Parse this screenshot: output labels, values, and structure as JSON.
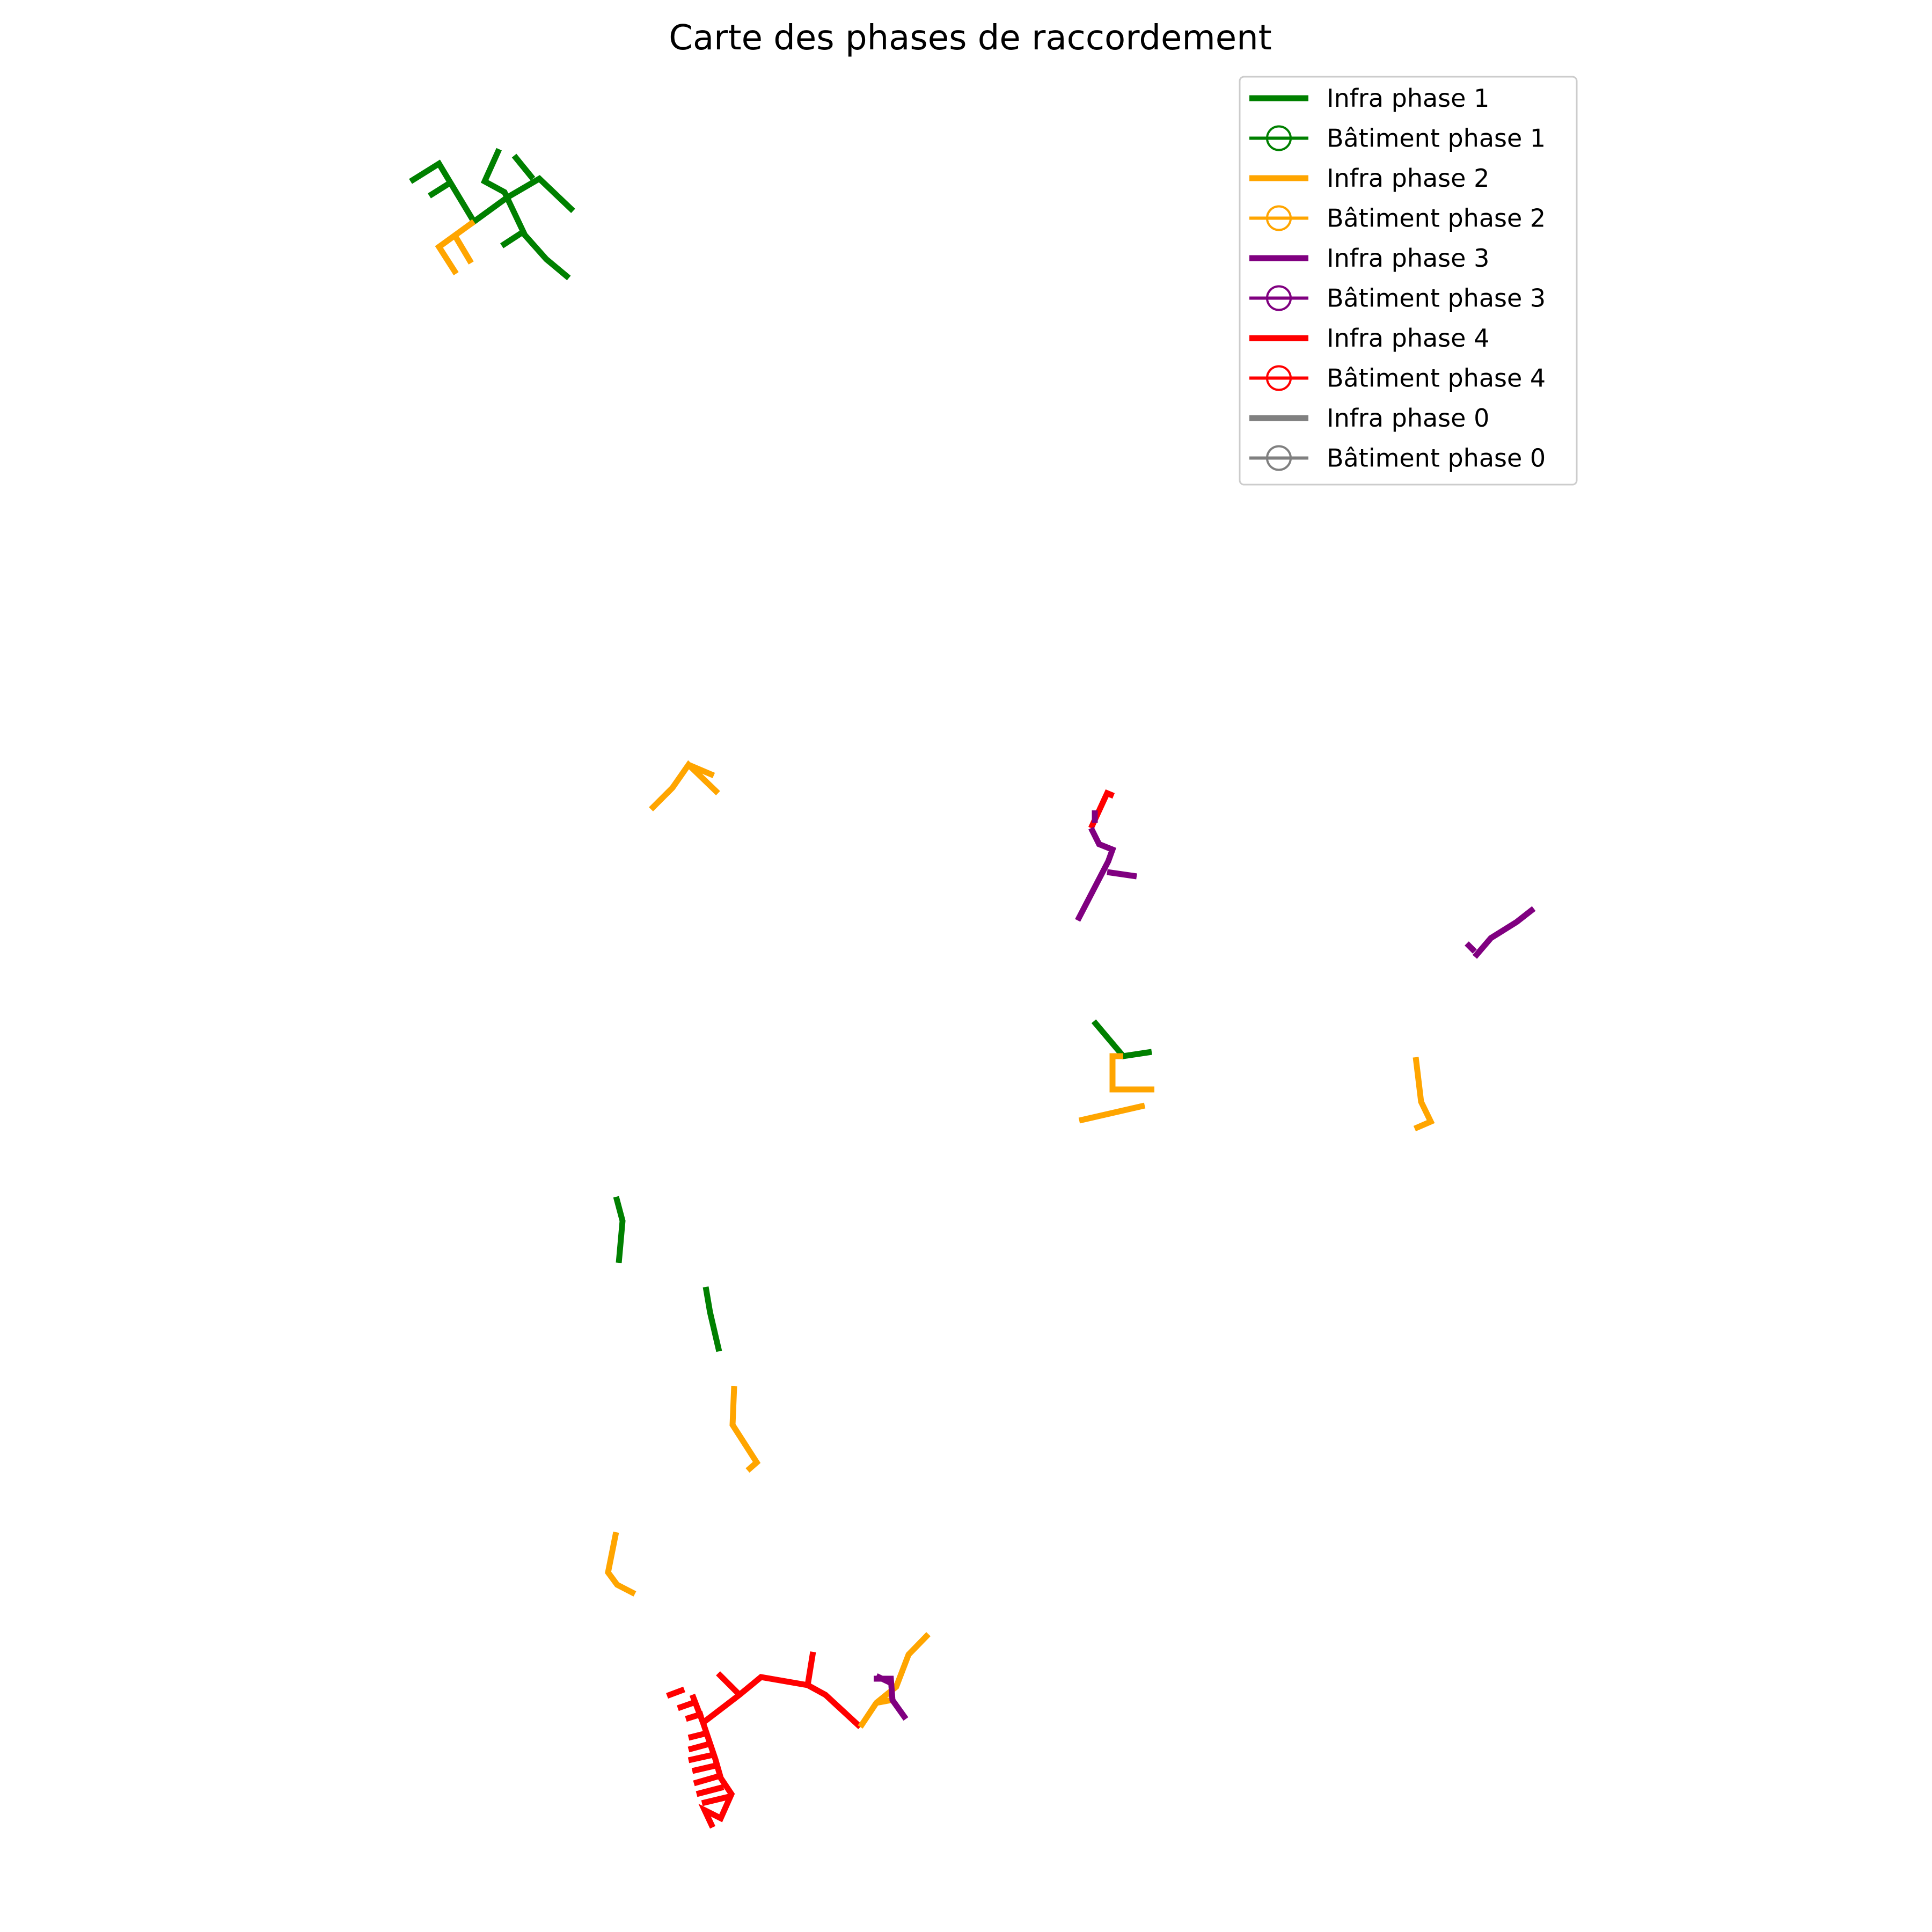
{
  "title": "Carte des phases de raccordement",
  "colors": {
    "phase_1": "#008000",
    "phase_2": "#ffa500",
    "phase_3": "#800080",
    "phase_4": "#ff0000",
    "phase_0": "#808080"
  },
  "legend": {
    "placement": "top-right",
    "entries": [
      {
        "label": "Infra phase 1",
        "phase": "phase_1",
        "marker": "line"
      },
      {
        "label": "Bâtiment phase 1",
        "phase": "phase_1",
        "marker": "circle"
      },
      {
        "label": "Infra phase 2",
        "phase": "phase_2",
        "marker": "line"
      },
      {
        "label": "Bâtiment phase 2",
        "phase": "phase_2",
        "marker": "circle"
      },
      {
        "label": "Infra phase 3",
        "phase": "phase_3",
        "marker": "line"
      },
      {
        "label": "Bâtiment phase 3",
        "phase": "phase_3",
        "marker": "circle"
      },
      {
        "label": "Infra phase 4",
        "phase": "phase_4",
        "marker": "line"
      },
      {
        "label": "Bâtiment phase 4",
        "phase": "phase_4",
        "marker": "circle"
      },
      {
        "label": "Infra phase 0",
        "phase": "phase_0",
        "marker": "line"
      },
      {
        "label": "Bâtiment phase 0",
        "phase": "phase_0",
        "marker": "circle"
      }
    ]
  }
}
